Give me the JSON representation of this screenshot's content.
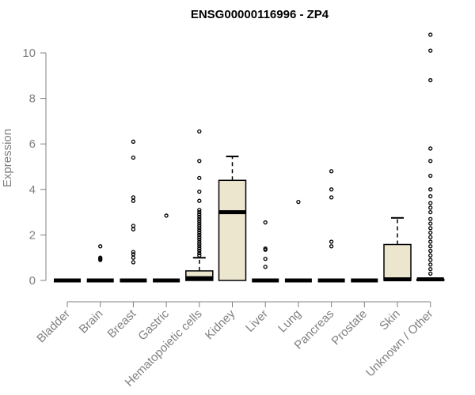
{
  "chart_data": {
    "type": "box",
    "title": "ENSG00000116996 - ZP4",
    "ylabel": "Expression",
    "xlabel": "",
    "ylim": [
      0,
      11
    ],
    "yticks": [
      0,
      2,
      4,
      6,
      8,
      10
    ],
    "grid": false,
    "legend": "none",
    "colors": {
      "box_fill": "#ece6cf",
      "outline": "#000000",
      "axis": "#808080"
    },
    "categories": [
      "Bladder",
      "Brain",
      "Breast",
      "Gastric",
      "Hematopoietic cells",
      "Kidney",
      "Liver",
      "Lung",
      "Pancreas",
      "Prostate",
      "Skin",
      "Unknown / Other"
    ],
    "boxes": [
      {
        "q1": 0,
        "median": 0,
        "q3": 0,
        "whisker_low": 0,
        "whisker_high": 0,
        "outliers": []
      },
      {
        "q1": 0,
        "median": 0,
        "q3": 0,
        "whisker_low": 0,
        "whisker_high": 0,
        "outliers": [
          0.9,
          0.95,
          1.0,
          1.5
        ]
      },
      {
        "q1": 0,
        "median": 0,
        "q3": 0,
        "whisker_low": 0,
        "whisker_high": 0,
        "outliers": [
          0.8,
          1.0,
          1.15,
          1.25,
          2.25,
          2.4,
          3.5,
          3.65,
          5.4,
          6.1
        ]
      },
      {
        "q1": 0,
        "median": 0,
        "q3": 0,
        "whisker_low": 0,
        "whisker_high": 0,
        "outliers": [
          2.85
        ]
      },
      {
        "q1": 0,
        "median": 0.1,
        "q3": 0.42,
        "whisker_low": 0,
        "whisker_high": 1.0,
        "outliers": [
          1.1,
          1.2,
          1.3,
          1.4,
          1.5,
          1.6,
          1.7,
          1.8,
          1.9,
          2.0,
          2.1,
          2.2,
          2.3,
          2.4,
          2.5,
          2.6,
          2.7,
          2.8,
          2.9,
          3.0,
          3.1,
          3.5,
          3.9,
          4.5,
          5.25,
          6.55
        ]
      },
      {
        "q1": 0,
        "median": 3.0,
        "q3": 4.4,
        "whisker_low": 0,
        "whisker_high": 5.45,
        "outliers": []
      },
      {
        "q1": 0,
        "median": 0,
        "q3": 0,
        "whisker_low": 0,
        "whisker_high": 0,
        "outliers": [
          0.6,
          0.95,
          1.35,
          1.4,
          2.55
        ]
      },
      {
        "q1": 0,
        "median": 0,
        "q3": 0,
        "whisker_low": 0,
        "whisker_high": 0,
        "outliers": [
          3.45
        ]
      },
      {
        "q1": 0,
        "median": 0,
        "q3": 0,
        "whisker_low": 0,
        "whisker_high": 0,
        "outliers": [
          1.5,
          1.7,
          3.65,
          4.0,
          4.8
        ]
      },
      {
        "q1": 0,
        "median": 0,
        "q3": 0,
        "whisker_low": 0,
        "whisker_high": 0,
        "outliers": []
      },
      {
        "q1": 0,
        "median": 0.05,
        "q3": 1.58,
        "whisker_low": 0,
        "whisker_high": 2.75,
        "outliers": []
      },
      {
        "q1": 0,
        "median": 0.05,
        "q3": 0.05,
        "whisker_low": 0,
        "whisker_high": 0.1,
        "outliers": [
          0.3,
          0.5,
          0.7,
          0.9,
          1.1,
          1.3,
          1.5,
          1.7,
          1.9,
          2.1,
          2.3,
          2.5,
          2.7,
          3.0,
          3.2,
          3.4,
          3.7,
          4.0,
          4.6,
          5.25,
          5.8,
          8.8,
          10.1,
          10.8
        ]
      }
    ]
  }
}
